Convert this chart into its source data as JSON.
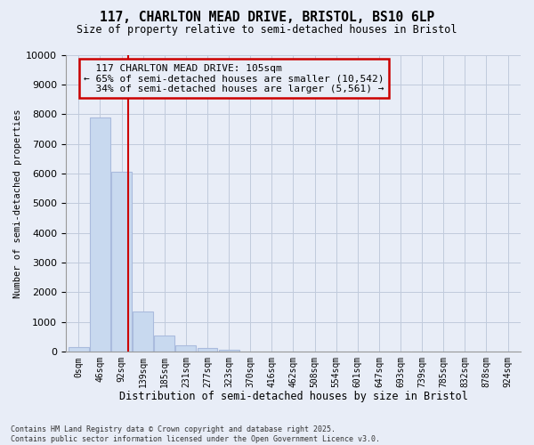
{
  "title_line1": "117, CHARLTON MEAD DRIVE, BRISTOL, BS10 6LP",
  "title_line2": "Size of property relative to semi-detached houses in Bristol",
  "xlabel": "Distribution of semi-detached houses by size in Bristol",
  "ylabel": "Number of semi-detached properties",
  "footnote": "Contains HM Land Registry data © Crown copyright and database right 2025.\nContains public sector information licensed under the Open Government Licence v3.0.",
  "bar_labels": [
    "0sqm",
    "46sqm",
    "92sqm",
    "139sqm",
    "185sqm",
    "231sqm",
    "277sqm",
    "323sqm",
    "370sqm",
    "416sqm",
    "462sqm",
    "508sqm",
    "554sqm",
    "601sqm",
    "647sqm",
    "693sqm",
    "739sqm",
    "785sqm",
    "832sqm",
    "878sqm",
    "924sqm"
  ],
  "bar_values": [
    150,
    7900,
    6050,
    1350,
    550,
    220,
    130,
    60,
    0,
    0,
    0,
    0,
    0,
    0,
    0,
    0,
    0,
    0,
    0,
    0,
    0
  ],
  "bar_color": "#c8d9ef",
  "bar_edge_color": "#aabbdd",
  "grid_color": "#c0cadc",
  "background_color": "#e8edf7",
  "property_line_x": 2.3,
  "property_value": 105,
  "property_label": "117 CHARLTON MEAD DRIVE: 105sqm",
  "smaller_pct": 65,
  "smaller_count": 10542,
  "larger_pct": 34,
  "larger_count": 5561,
  "annotation_box_color": "#cc0000",
  "ylim": [
    0,
    10000
  ],
  "yticks": [
    0,
    1000,
    2000,
    3000,
    4000,
    5000,
    6000,
    7000,
    8000,
    9000,
    10000
  ]
}
